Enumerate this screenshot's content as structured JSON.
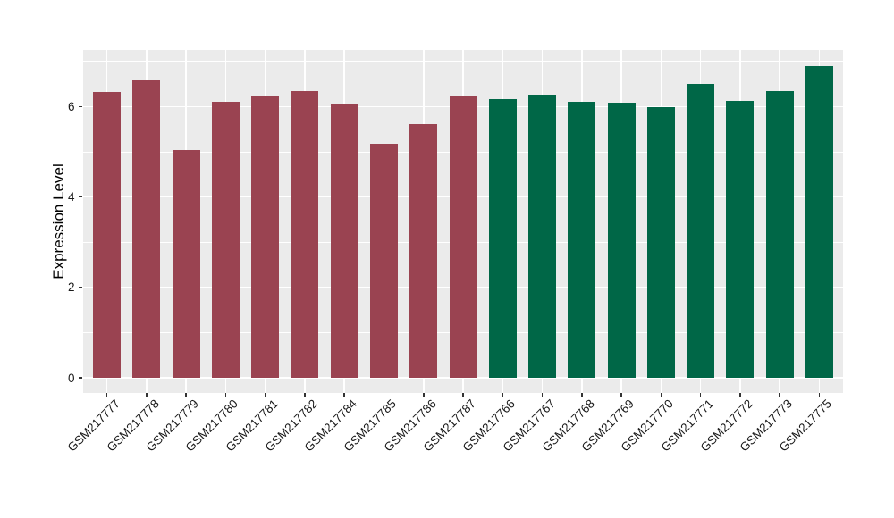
{
  "figure": {
    "background": "#ffffff",
    "y_axis_title": "Expression Level"
  },
  "chart_data": {
    "type": "bar",
    "title": "",
    "xlabel": "",
    "ylabel": "Expression Level",
    "categories": [
      "GSM217777",
      "GSM217778",
      "GSM217779",
      "GSM217780",
      "GSM217781",
      "GSM217782",
      "GSM217784",
      "GSM217785",
      "GSM217786",
      "GSM217787",
      "GSM217766",
      "GSM217767",
      "GSM217768",
      "GSM217769",
      "GSM217770",
      "GSM217771",
      "GSM217772",
      "GSM217773",
      "GSM217775"
    ],
    "values": [
      6.32,
      6.59,
      5.03,
      6.11,
      6.23,
      6.34,
      6.06,
      5.17,
      5.61,
      6.24,
      6.16,
      6.26,
      6.11,
      6.08,
      5.98,
      6.51,
      6.13,
      6.34,
      6.9
    ],
    "groups": [
      "a",
      "a",
      "a",
      "a",
      "a",
      "a",
      "a",
      "a",
      "a",
      "a",
      "b",
      "b",
      "b",
      "b",
      "b",
      "b",
      "b",
      "b",
      "b"
    ],
    "group_colors": {
      "a": "#9A4351",
      "b": "#006747"
    },
    "yticks": [
      0,
      2,
      4,
      6
    ],
    "ytick_labels": [
      "0",
      "2",
      "4",
      "6"
    ],
    "minor_yticks": [
      1,
      3,
      5,
      7
    ],
    "ylim": [
      -0.34,
      7.24
    ],
    "bar_width_fraction": 0.7,
    "panel_background": "#EBEBEB",
    "grid_color": "#FFFFFF",
    "grid": "major and minor horizontal white lines, vertical white line per category",
    "legend": "none",
    "axis_text_color": "#1a1a1a",
    "tick_mark_color": "#333333"
  }
}
